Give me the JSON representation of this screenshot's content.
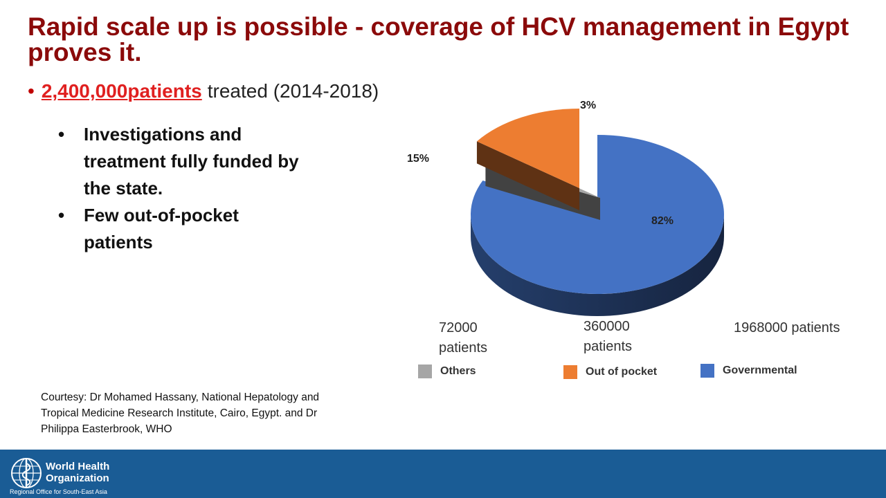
{
  "slide": {
    "title": "Rapid scale up is possible - coverage of HCV management in Egypt proves it.",
    "main_bullet": {
      "bullet": "•",
      "highlight_number": "2,400,000",
      "highlight_word": "patients",
      "rest": "treated (2014-2018)"
    },
    "sub_bullets": [
      "Investigations and treatment fully funded by the state.",
      "Few out-of-pocket patients"
    ],
    "courtesy": "Courtesy: Dr Mohamed Hassany, National Hepatology and Tropical Medicine Research Institute, Cairo, Egypt. and Dr Philippa Easterbrook, WHO"
  },
  "chart_data": {
    "type": "pie",
    "title": "",
    "three_d": true,
    "exploded": true,
    "categories": [
      "Others",
      "Out of pocket",
      "Governmental"
    ],
    "values": [
      3,
      15,
      82
    ],
    "labels": [
      "3%",
      "15%",
      "82%"
    ],
    "patient_counts": [
      "72000 patients",
      "360000 patients",
      "1968000 patients"
    ],
    "colors": [
      "#a6a6a6",
      "#ed7d31",
      "#4472c4"
    ],
    "legend_position": "bottom"
  },
  "footer": {
    "org_line1": "World Health",
    "org_line2": "Organization",
    "office": "Regional Office for South-East Asia",
    "logo_icon": "who-emblem-icon",
    "background": "#1a5c95"
  }
}
